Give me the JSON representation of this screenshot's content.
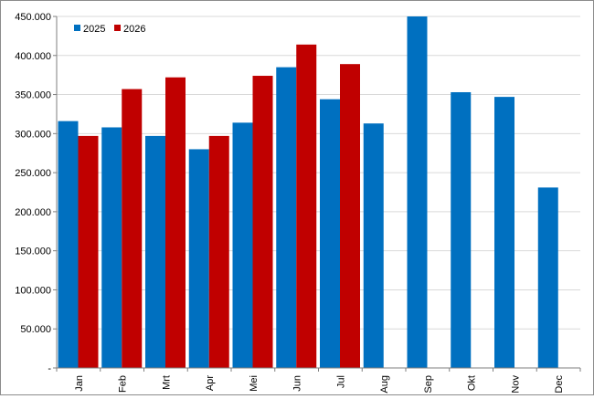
{
  "chart_data": {
    "type": "bar",
    "categories": [
      "Jan",
      "Feb",
      "Mrt",
      "Apr",
      "Mei",
      "Jun",
      "Jul",
      "Aug",
      "Sep",
      "Okt",
      "Nov",
      "Dec"
    ],
    "series": [
      {
        "name": "2025",
        "color": "#0070C0",
        "values": [
          316000,
          308000,
          297000,
          280000,
          314000,
          385000,
          344000,
          313000,
          450000,
          353000,
          347000,
          231000
        ]
      },
      {
        "name": "2026",
        "color": "#C00000",
        "values": [
          297000,
          357000,
          372000,
          297000,
          374000,
          414000,
          389000,
          null,
          null,
          null,
          null,
          null
        ]
      }
    ],
    "ylim": [
      0,
      450000
    ],
    "y_ticks": [
      "-",
      "50.000",
      "100.000",
      "150.000",
      "200.000",
      "250.000",
      "300.000",
      "350.000",
      "400.000",
      "450.000"
    ],
    "grid": true,
    "legend_position": "top-left",
    "gridline_color": "#d9d9d9"
  }
}
